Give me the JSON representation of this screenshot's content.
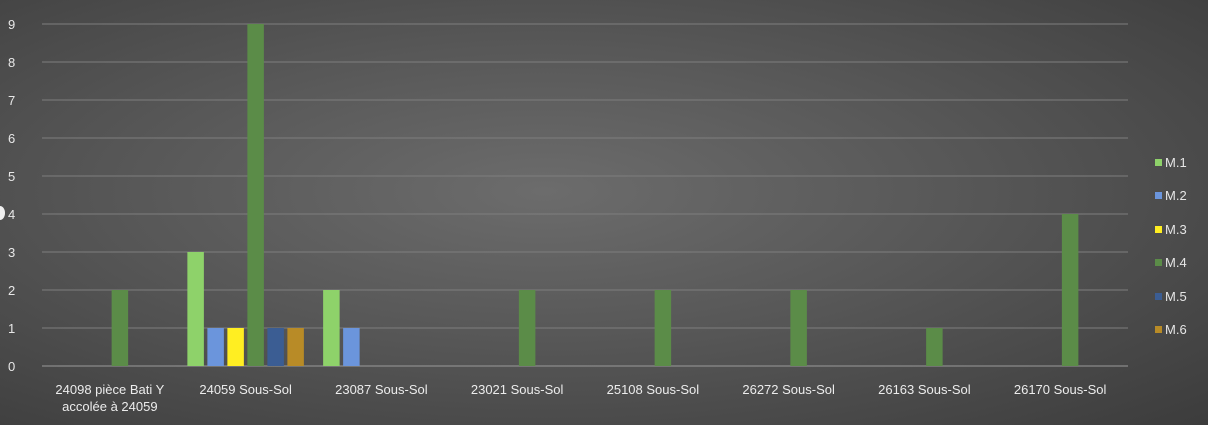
{
  "chart_data": {
    "type": "bar",
    "categories": [
      [
        "24098 pièce Bati Y",
        "accolée à 24059"
      ],
      [
        "24059 Sous-Sol"
      ],
      [
        "23087 Sous-Sol"
      ],
      [
        "23021 Sous-Sol"
      ],
      [
        "25108 Sous-Sol"
      ],
      [
        "26272 Sous-Sol"
      ],
      [
        "26163 Sous-Sol"
      ],
      [
        "26170 Sous-Sol"
      ]
    ],
    "series": [
      {
        "name": "M.1",
        "color": "#8ed26a",
        "values": [
          0,
          3,
          2,
          0,
          0,
          0,
          0,
          0
        ]
      },
      {
        "name": "M.2",
        "color": "#6b95dc",
        "values": [
          0,
          1,
          1,
          0,
          0,
          0,
          0,
          0
        ]
      },
      {
        "name": "M.3",
        "color": "#ffee22",
        "values": [
          0,
          1,
          0,
          0,
          0,
          0,
          0,
          0
        ]
      },
      {
        "name": "M.4",
        "color": "#5b8c48",
        "values": [
          2,
          9,
          0,
          2,
          2,
          2,
          1,
          4
        ]
      },
      {
        "name": "M.5",
        "color": "#3b5d93",
        "values": [
          0,
          1,
          0,
          0,
          0,
          0,
          0,
          0
        ]
      },
      {
        "name": "M.6",
        "color": "#b88b27",
        "values": [
          0,
          1,
          0,
          0,
          0,
          0,
          0,
          0
        ]
      }
    ],
    "y_ticks": [
      "0",
      "1",
      "2",
      "3",
      "4",
      "5",
      "6",
      "7",
      "8",
      "9"
    ],
    "ylim": [
      0,
      9
    ],
    "grid": true,
    "legend_position": "right",
    "title": "",
    "xlabel": "",
    "ylabel": ""
  }
}
